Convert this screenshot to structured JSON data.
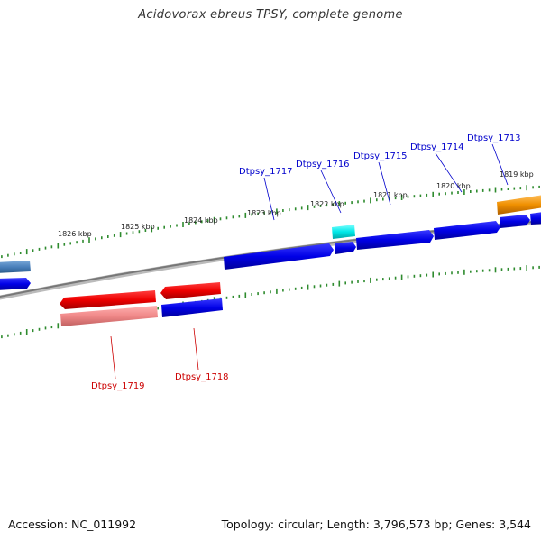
{
  "title": "Acidovorax ebreus TPSY, complete genome",
  "footer": {
    "accession": "Accession: NC_011992",
    "summary": "Topology: circular; Length: 3,796,573 bp; Genes: 3,544"
  },
  "colors": {
    "forward_gene": "#0000ee",
    "reverse_gene": "#ee0000",
    "reverse_pseudo": "#f08a8a",
    "tick_green": "#2e8b2e",
    "backbone": "#888888",
    "label_forward": "#0000cc",
    "label_reverse": "#cc0000"
  },
  "scale_labels": [
    "1826 kbp",
    "1825 kbp",
    "1824 kbp",
    "1823 kbp",
    "1822 kbp",
    "1821 kbp",
    "1820 kbp",
    "1819 kbp"
  ],
  "forward_genes": [
    {
      "label": "Dtpsy_1717",
      "color": "blue"
    },
    {
      "label": "Dtpsy_1716",
      "color": "cyan"
    },
    {
      "label": "Dtpsy_1715",
      "color": "blue"
    },
    {
      "label": "Dtpsy_1714",
      "color": "blue"
    },
    {
      "label": "Dtpsy_1713",
      "color": "blue"
    },
    {
      "label": "",
      "color": "orange"
    },
    {
      "label": "",
      "color": "steelblue"
    }
  ],
  "reverse_genes": [
    {
      "label": "Dtpsy_1719",
      "color": "red"
    },
    {
      "label": "Dtpsy_1718",
      "color": "red"
    }
  ]
}
